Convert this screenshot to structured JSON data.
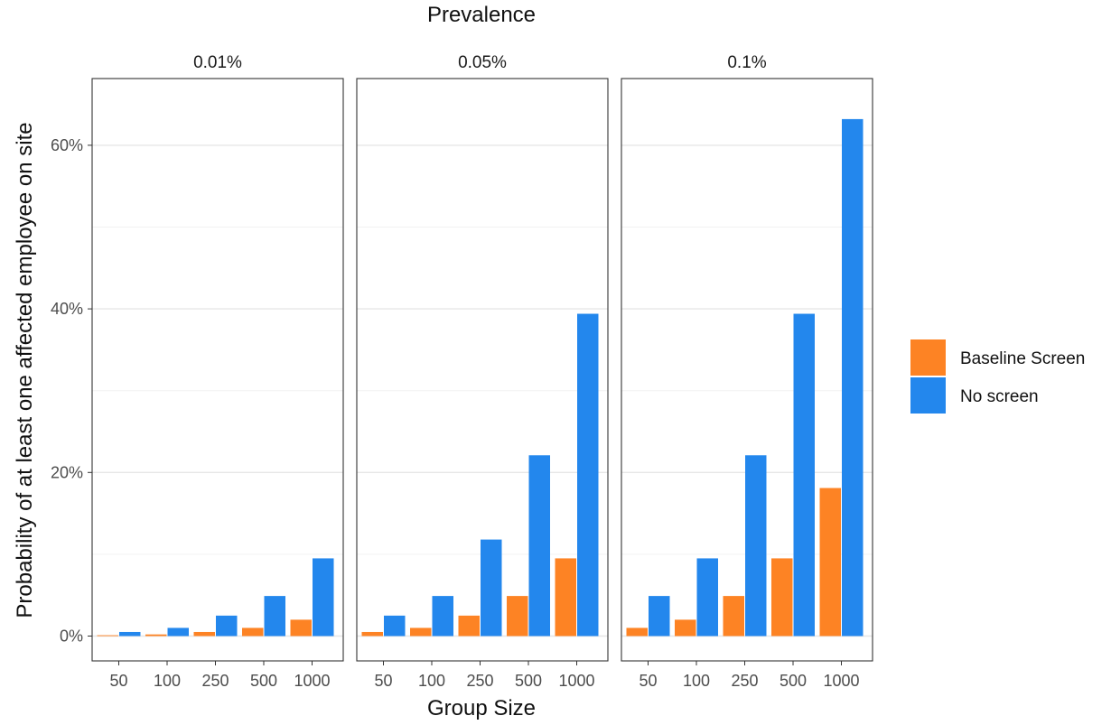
{
  "chart_data": {
    "type": "bar",
    "title": "Prevalence",
    "xlabel": "Group Size",
    "ylabel": "Probability of at least one affected employee on site",
    "categories": [
      "50",
      "100",
      "250",
      "500",
      "1000"
    ],
    "facets": [
      {
        "label": "0.01%",
        "series": [
          {
            "name": "Baseline Screen",
            "values": [
              0.1,
              0.2,
              0.5,
              1.0,
              2.0
            ]
          },
          {
            "name": "No screen",
            "values": [
              0.5,
              1.0,
              2.5,
              4.9,
              9.5
            ]
          }
        ]
      },
      {
        "label": "0.05%",
        "series": [
          {
            "name": "Baseline Screen",
            "values": [
              0.5,
              1.0,
              2.5,
              4.9,
              9.5
            ]
          },
          {
            "name": "No screen",
            "values": [
              2.5,
              4.9,
              11.8,
              22.1,
              39.4
            ]
          }
        ]
      },
      {
        "label": "0.1%",
        "series": [
          {
            "name": "Baseline Screen",
            "values": [
              1.0,
              2.0,
              4.9,
              9.5,
              18.1
            ]
          },
          {
            "name": "No screen",
            "values": [
              4.9,
              9.5,
              22.1,
              39.4,
              63.2
            ]
          }
        ]
      }
    ],
    "yticks": [
      0,
      20,
      40,
      60
    ],
    "ytick_labels": [
      "0%",
      "20%",
      "40%",
      "60%"
    ],
    "ylim": [
      -3,
      68
    ],
    "grid": true,
    "legend": {
      "placement": "right",
      "items": [
        {
          "name": "Baseline Screen",
          "color": "#fd8324"
        },
        {
          "name": "No screen",
          "color": "#2387ed"
        }
      ]
    },
    "colors": {
      "Baseline Screen": "#fd8324",
      "No screen": "#2387ed"
    }
  }
}
